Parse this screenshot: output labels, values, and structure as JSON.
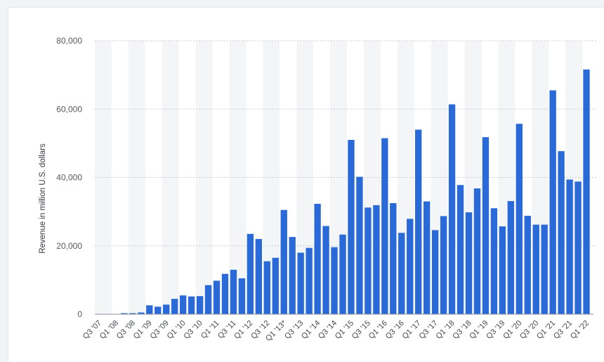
{
  "colors": {
    "bar": "#2a6ad8",
    "band": "#f4f5f7",
    "grid": "#c8ccd2",
    "baseline": "#8e949c"
  },
  "chart_data": {
    "type": "bar",
    "title": "",
    "xlabel": "",
    "ylabel": "Revenue in million U.S. dollars",
    "ylim": [
      0,
      80000
    ],
    "y_ticks": [
      "0",
      "20,000",
      "40,000",
      "60,000",
      "80,000"
    ],
    "y_tick_values": [
      0,
      20000,
      40000,
      60000,
      80000
    ],
    "grid": true,
    "legend": "none",
    "categories": [
      "Q3 '07",
      "Q4 '07",
      "Q1 '08",
      "Q2 '08",
      "Q3 '08",
      "Q4 '08",
      "Q1 '09",
      "Q2 '09",
      "Q3 '09",
      "Q4 '09",
      "Q1 '10",
      "Q2 '10",
      "Q3 '10",
      "Q4 '10",
      "Q1 '11",
      "Q2 '11",
      "Q3 '11",
      "Q4 '11",
      "Q1 '12",
      "Q2 '12",
      "Q3 '12",
      "Q4 '12",
      "Q1 '13*",
      "Q2 '13",
      "Q3 '13",
      "Q4 '13",
      "Q1 '14",
      "Q2 '14",
      "Q3 '14",
      "Q4 '14",
      "Q1 '15",
      "Q2 '15",
      "Q3 '15",
      "Q4 '15",
      "Q1 '16",
      "Q2 '16",
      "Q3 '16",
      "Q4 '16",
      "Q1 '17",
      "Q2 '17",
      "Q3 '17",
      "Q4 '17",
      "Q1 '18",
      "Q2 '18",
      "Q3 '18",
      "Q4 '18",
      "Q1 '19",
      "Q2 '19",
      "Q3 '19",
      "Q4 '19",
      "Q1 '20",
      "Q2 '20",
      "Q3 '20",
      "Q4 '20",
      "Q1 '21",
      "Q2 '21",
      "Q3 '21",
      "Q4 '21",
      "Q1 '22"
    ],
    "shown_tick_labels": [
      "Q3 '07",
      "Q1 '08",
      "Q3 '08",
      "Q1 '09",
      "Q3 '09",
      "Q1 '10",
      "Q3 '10",
      "Q1 '11",
      "Q3 '11",
      "Q1 '12",
      "Q3 '12",
      "Q1 '13*",
      "Q3 '13",
      "Q1 '14",
      "Q3 '14",
      "Q1 '15",
      "Q3 '15",
      "Q1 '16",
      "Q3 '16",
      "Q1 '17",
      "Q3 '17",
      "Q1 '18",
      "Q3 '18",
      "Q1 '19",
      "Q3 '19",
      "Q1 '20",
      "Q3 '20",
      "Q1 '21",
      "Q3 '21",
      "Q1 '22"
    ],
    "values": [
      0,
      0,
      0,
      300,
      300,
      500,
      2600,
      2200,
      2800,
      4500,
      5500,
      5200,
      5300,
      8500,
      9800,
      11800,
      13000,
      10500,
      23500,
      22000,
      15500,
      16500,
      30500,
      22600,
      18000,
      19400,
      32300,
      25800,
      19600,
      23300,
      51000,
      40200,
      31200,
      31900,
      51500,
      32500,
      23800,
      27900,
      54000,
      33000,
      24600,
      28700,
      61400,
      37800,
      29800,
      36800,
      51800,
      31000,
      25700,
      33100,
      55700,
      28800,
      26200,
      26200,
      65500,
      47700,
      39400,
      38800,
      71600
    ]
  }
}
